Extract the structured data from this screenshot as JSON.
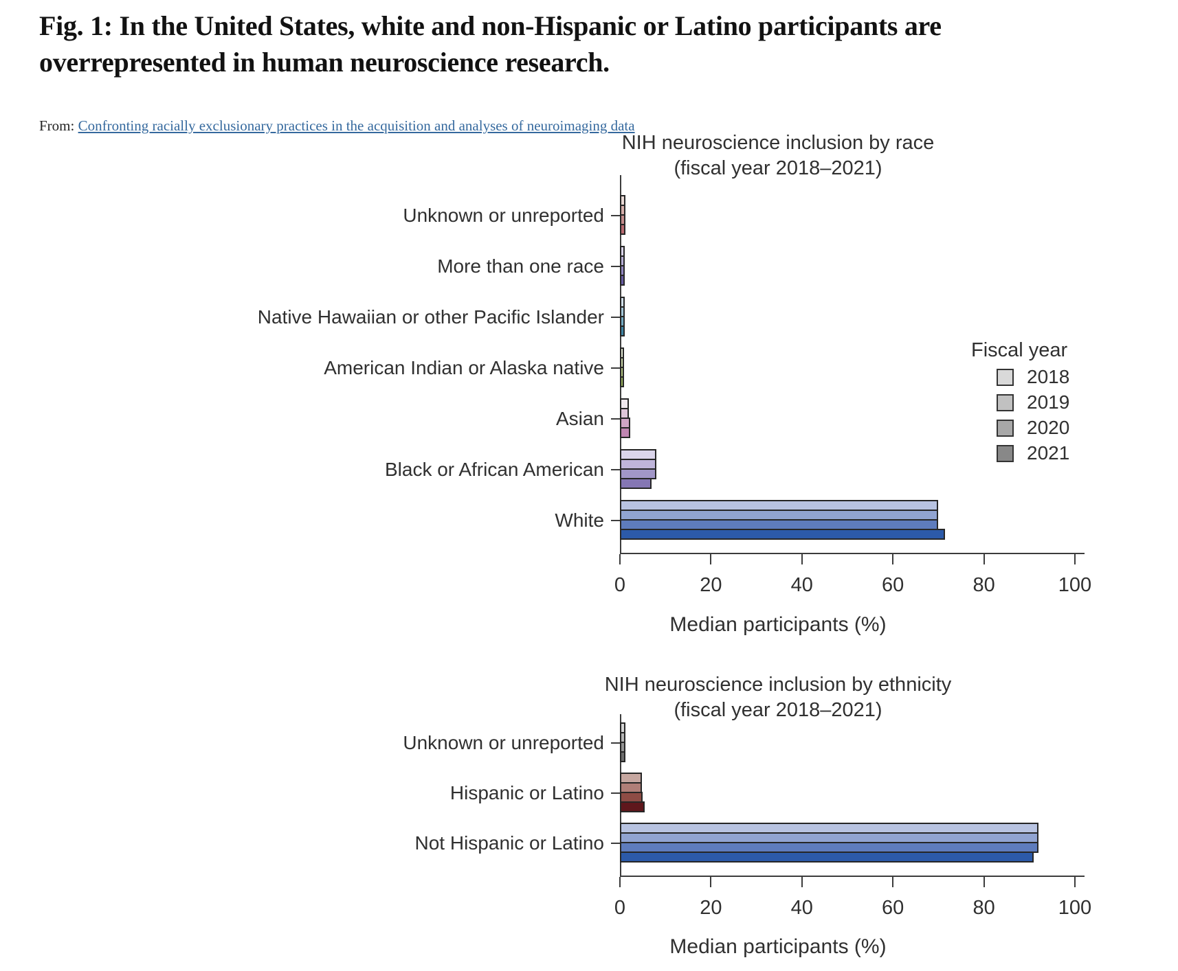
{
  "header": {
    "title": "Fig. 1: In the United States, white and non-Hispanic or Latino participants are overrepresented in human neuroscience research.",
    "from_label": "From:",
    "source_link": "Confronting racially exclusionary practices in the acquisition and analyses of neuroimaging data",
    "link_color": "#35699e"
  },
  "legend": {
    "title": "Fiscal year",
    "items": [
      {
        "label": "2018",
        "color": "#d9d9d9"
      },
      {
        "label": "2019",
        "color": "#c1c1c1"
      },
      {
        "label": "2020",
        "color": "#a8a8a8"
      },
      {
        "label": "2021",
        "color": "#888888"
      }
    ]
  },
  "chart_data": [
    {
      "type": "bar",
      "orientation": "horizontal",
      "title": "NIH neuroscience inclusion by race",
      "subtitle": "(fiscal year 2018–2021)",
      "xlabel": "Median participants (%)",
      "xlim": [
        0,
        100
      ],
      "xticks": [
        0,
        20,
        40,
        60,
        80,
        100
      ],
      "series_years": [
        "2018",
        "2019",
        "2020",
        "2021"
      ],
      "grid": false,
      "legend_position": "right",
      "categories": [
        {
          "label": "Unknown or unreported",
          "values": [
            1.2,
            1.2,
            1.2,
            1.2
          ],
          "colors": [
            "#e9d9d5",
            "#d6aeaa",
            "#c48c8c",
            "#b96a70"
          ]
        },
        {
          "label": "More than one race",
          "values": [
            1.1,
            1.1,
            1.1,
            1.1
          ],
          "colors": [
            "#dad5ea",
            "#b7afd6",
            "#9287c0",
            "#675ca3"
          ]
        },
        {
          "label": "Native Hawaiian or other Pacific Islander",
          "values": [
            1.0,
            1.0,
            1.0,
            1.0
          ],
          "colors": [
            "#d2e0ea",
            "#a5c7d8",
            "#74aac2",
            "#3f85a4"
          ]
        },
        {
          "label": "American Indian or Alaska native",
          "values": [
            0.9,
            0.9,
            0.9,
            0.9
          ],
          "colors": [
            "#e5ebd6",
            "#cbd7a9",
            "#b2c481",
            "#97b05c"
          ]
        },
        {
          "label": "Asian",
          "values": [
            2.0,
            2.0,
            2.2,
            2.2
          ],
          "colors": [
            "#f0e8ee",
            "#dfc6d9",
            "#cfa5c5",
            "#bf85b1"
          ]
        },
        {
          "label": "Black or African American",
          "values": [
            8,
            8,
            8,
            7
          ],
          "colors": [
            "#dbd5eb",
            "#bfb5da",
            "#a297c8",
            "#8577b4"
          ]
        },
        {
          "label": "White",
          "values": [
            70,
            70,
            70,
            71.5
          ],
          "colors": [
            "#b8c3e1",
            "#91a4d1",
            "#5e7cbd",
            "#2c5aa9"
          ]
        }
      ]
    },
    {
      "type": "bar",
      "orientation": "horizontal",
      "title": "NIH neuroscience inclusion by ethnicity",
      "subtitle": "(fiscal year 2018–2021)",
      "xlabel": "Median participants (%)",
      "xlim": [
        0,
        100
      ],
      "xticks": [
        0,
        20,
        40,
        60,
        80,
        100
      ],
      "series_years": [
        "2018",
        "2019",
        "2020",
        "2021"
      ],
      "grid": false,
      "legend_position": "none",
      "categories": [
        {
          "label": "Unknown or unreported",
          "values": [
            1.2,
            1.2,
            1.2,
            1.2
          ],
          "colors": [
            "#d6d6d6",
            "#b6b6b6",
            "#949494",
            "#6e6e6e"
          ]
        },
        {
          "label": "Hispanic or Latino",
          "values": [
            4.8,
            4.8,
            5.0,
            5.5
          ],
          "colors": [
            "#c6a7a0",
            "#b07f78",
            "#8e4c45",
            "#5f171c"
          ]
        },
        {
          "label": "Not Hispanic or Latino",
          "values": [
            92,
            92,
            92,
            91
          ],
          "colors": [
            "#b8c3e1",
            "#91a4d1",
            "#5e7cbd",
            "#2c5aa9"
          ]
        }
      ]
    }
  ]
}
